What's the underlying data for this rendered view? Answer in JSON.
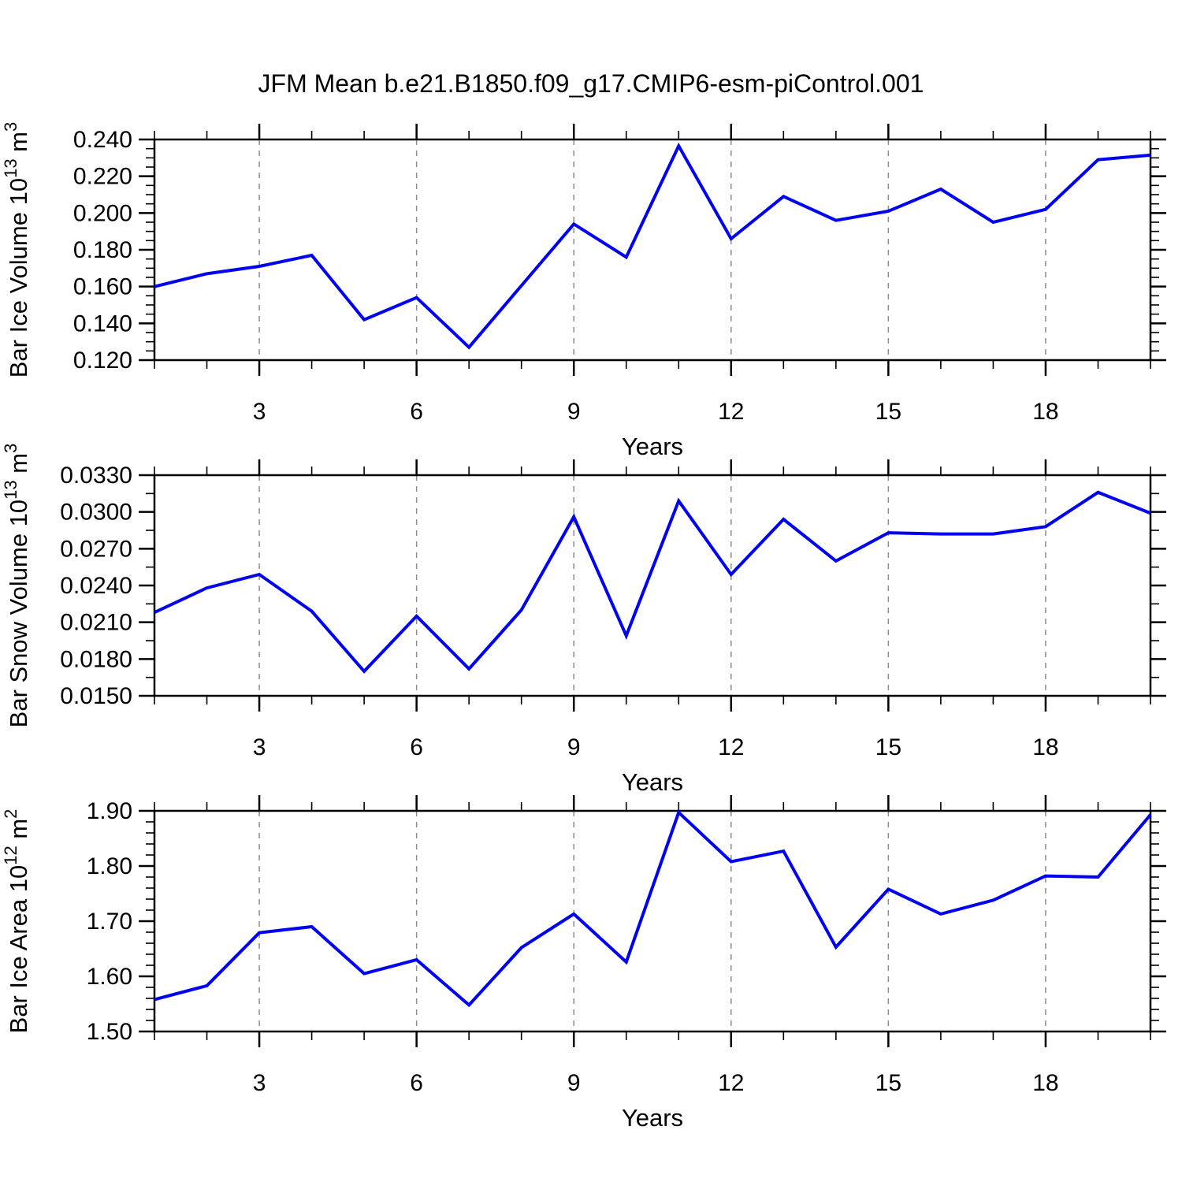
{
  "title": "JFM Mean b.e21.B1850.f09_g17.CMIP6-esm-piControl.001",
  "colors": {
    "line": "#0000f2",
    "grid": "#8c8c8c",
    "axis": "#000000",
    "text": "#000000",
    "background": "#ffffff"
  },
  "chart_data": [
    {
      "type": "line",
      "panel": 1,
      "xlabel": "Years",
      "ylabel": "Bar Ice Volume 10^13 m^3",
      "ylabel_parts": [
        {
          "t": "Bar Ice Volume 10"
        },
        {
          "t": "13",
          "sup": true
        },
        {
          "t": " m"
        },
        {
          "t": "3",
          "sup": true
        }
      ],
      "x": [
        1,
        2,
        3,
        4,
        5,
        6,
        7,
        8,
        9,
        10,
        11,
        12,
        13,
        14,
        15,
        16,
        17,
        18,
        19,
        20
      ],
      "values": [
        0.16,
        0.167,
        0.171,
        0.177,
        0.142,
        0.154,
        0.127,
        0.1605,
        0.194,
        0.176,
        0.2365,
        0.186,
        0.209,
        0.196,
        0.201,
        0.213,
        0.195,
        0.202,
        0.229,
        0.2315
      ],
      "xlim": [
        1,
        20
      ],
      "ylim": [
        0.12,
        0.24
      ],
      "xticks": {
        "values": [
          3,
          6,
          9,
          12,
          15,
          18
        ],
        "labels": [
          "3",
          "6",
          "9",
          "12",
          "15",
          "18"
        ]
      },
      "xminor_step": 1,
      "yticks": {
        "values": [
          0.12,
          0.14,
          0.16,
          0.18,
          0.2,
          0.22,
          0.24
        ],
        "labels": [
          "0.120",
          "0.140",
          "0.160",
          "0.180",
          "0.200",
          "0.220",
          "0.240"
        ]
      },
      "yminor_step": 0.005,
      "grid": "vertical-dashed",
      "legend": "none"
    },
    {
      "type": "line",
      "panel": 2,
      "xlabel": "Years",
      "ylabel": "Bar Snow Volume 10^13 m^3",
      "ylabel_parts": [
        {
          "t": "Bar Snow Volume 10"
        },
        {
          "t": "13",
          "sup": true
        },
        {
          "t": " m"
        },
        {
          "t": "3",
          "sup": true
        }
      ],
      "x": [
        1,
        2,
        3,
        4,
        5,
        6,
        7,
        8,
        9,
        10,
        11,
        12,
        13,
        14,
        15,
        16,
        17,
        18,
        19,
        20
      ],
      "values": [
        0.0218,
        0.0238,
        0.0249,
        0.0219,
        0.017,
        0.0215,
        0.0172,
        0.022,
        0.0296,
        0.0199,
        0.0309,
        0.0249,
        0.0294,
        0.026,
        0.0283,
        0.0282,
        0.0282,
        0.0288,
        0.0316,
        0.0299
      ],
      "xlim": [
        1,
        20
      ],
      "ylim": [
        0.015,
        0.033
      ],
      "xticks": {
        "values": [
          3,
          6,
          9,
          12,
          15,
          18
        ],
        "labels": [
          "3",
          "6",
          "9",
          "12",
          "15",
          "18"
        ]
      },
      "xminor_step": 1,
      "yticks": {
        "values": [
          0.015,
          0.018,
          0.021,
          0.024,
          0.027,
          0.03,
          0.033
        ],
        "labels": [
          "0.0150",
          "0.0180",
          "0.0210",
          "0.0240",
          "0.0270",
          "0.0300",
          "0.0330"
        ]
      },
      "yminor_step": 0.0015,
      "grid": "vertical-dashed",
      "legend": "none"
    },
    {
      "type": "line",
      "panel": 3,
      "xlabel": "Years",
      "ylabel": "Bar Ice Area 10^12 m^2",
      "ylabel_parts": [
        {
          "t": "Bar Ice Area 10"
        },
        {
          "t": "12",
          "sup": true
        },
        {
          "t": " m"
        },
        {
          "t": "2",
          "sup": true
        }
      ],
      "x": [
        1,
        2,
        3,
        4,
        5,
        6,
        7,
        8,
        9,
        10,
        11,
        12,
        13,
        14,
        15,
        16,
        17,
        18,
        19,
        20
      ],
      "values": [
        1.558,
        1.583,
        1.679,
        1.69,
        1.605,
        1.63,
        1.548,
        1.652,
        1.713,
        1.626,
        1.897,
        1.808,
        1.827,
        1.653,
        1.758,
        1.713,
        1.738,
        1.782,
        1.78,
        1.893
      ],
      "xlim": [
        1,
        20
      ],
      "ylim": [
        1.5,
        1.9
      ],
      "xticks": {
        "values": [
          3,
          6,
          9,
          12,
          15,
          18
        ],
        "labels": [
          "3",
          "6",
          "9",
          "12",
          "15",
          "18"
        ]
      },
      "xminor_step": 1,
      "yticks": {
        "values": [
          1.5,
          1.6,
          1.7,
          1.8,
          1.9
        ],
        "labels": [
          "1.50",
          "1.60",
          "1.70",
          "1.80",
          "1.90"
        ]
      },
      "yminor_step": 0.02,
      "grid": "vertical-dashed",
      "legend": "none"
    }
  ]
}
